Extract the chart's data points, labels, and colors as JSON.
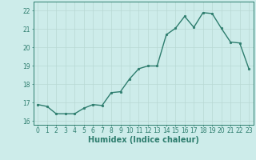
{
  "x": [
    0,
    1,
    2,
    3,
    4,
    5,
    6,
    7,
    8,
    9,
    10,
    11,
    12,
    13,
    14,
    15,
    16,
    17,
    18,
    19,
    20,
    21,
    22,
    23
  ],
  "y": [
    16.9,
    16.8,
    16.4,
    16.4,
    16.4,
    16.7,
    16.9,
    16.85,
    17.55,
    17.6,
    18.3,
    18.85,
    19.0,
    19.0,
    20.7,
    21.05,
    21.7,
    21.1,
    21.9,
    21.85,
    21.05,
    20.3,
    20.25,
    18.85
  ],
  "line_color": "#2e7d6e",
  "marker": "o",
  "marker_size": 1.8,
  "line_width": 1.0,
  "bg_color": "#cdecea",
  "grid_color": "#b8d8d4",
  "tick_color": "#2e7d6e",
  "xlabel": "Humidex (Indice chaleur)",
  "xlabel_fontsize": 7,
  "ylim": [
    15.8,
    22.5
  ],
  "xlim": [
    -0.5,
    23.5
  ],
  "yticks": [
    16,
    17,
    18,
    19,
    20,
    21,
    22
  ],
  "xticks": [
    0,
    1,
    2,
    3,
    4,
    5,
    6,
    7,
    8,
    9,
    10,
    11,
    12,
    13,
    14,
    15,
    16,
    17,
    18,
    19,
    20,
    21,
    22,
    23
  ],
  "tick_fontsize": 5.5,
  "spine_color": "#2e7d6e"
}
